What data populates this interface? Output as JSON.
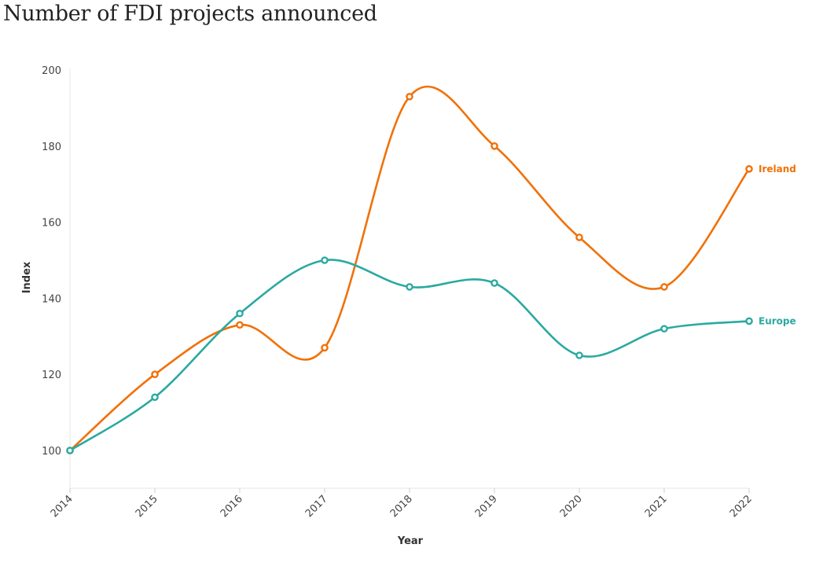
{
  "chart_data": {
    "type": "line",
    "title": "Number of FDI projects announced",
    "xlabel": "Year",
    "ylabel": "Index",
    "x": [
      "2014",
      "2015",
      "2016",
      "2017",
      "2018",
      "2019",
      "2020",
      "2021",
      "2022"
    ],
    "ylim": [
      90,
      200
    ],
    "yticks": [
      100,
      120,
      140,
      160,
      180,
      200
    ],
    "grid": false,
    "legend": "direct labels at line ends",
    "series": [
      {
        "name": "Ireland",
        "color": "#f07109",
        "values": [
          100,
          120,
          133,
          127,
          193,
          180,
          156,
          143,
          174
        ]
      },
      {
        "name": "Europe",
        "color": "#2aa9a1",
        "values": [
          100,
          114,
          136,
          150,
          143,
          144,
          125,
          132,
          134
        ]
      }
    ]
  }
}
